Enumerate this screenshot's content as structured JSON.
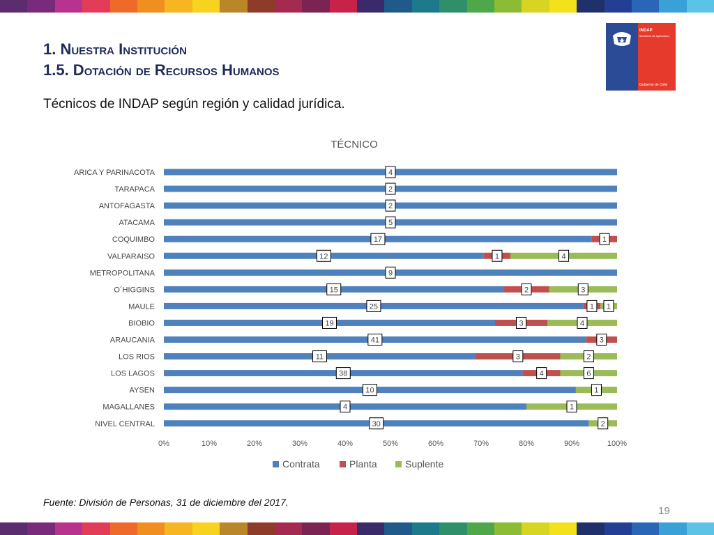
{
  "slide": {
    "heading_line1": "1. Nuestra Institución",
    "heading_line2": "1.5. Dotación de Recursos Humanos",
    "subtitle": "Técnicos de INDAP según región y calidad jurídica.",
    "source": "Fuente: División de Personas, 31 de diciembre del 2017.",
    "page_number": "19"
  },
  "logo": {
    "org": "INDAP",
    "ministry": "Ministerio de Agricultura",
    "government": "Gobierno de Chile"
  },
  "stripe_colors": [
    "#5b2d6e",
    "#7a2a7a",
    "#b8338e",
    "#e23c59",
    "#ee6a2a",
    "#f08f1f",
    "#f6b521",
    "#f7d21f",
    "#b9862a",
    "#8f3b2a",
    "#a52a52",
    "#7b2353",
    "#c7224a",
    "#3a2a6a",
    "#1f5a8a",
    "#1d7a8a",
    "#2f8f6a",
    "#4ea84a",
    "#8cbc34",
    "#d8d522",
    "#f2e11b",
    "#20306b",
    "#233f95",
    "#2a66b8",
    "#3aa0d8",
    "#5cc3e6"
  ],
  "colors": {
    "contrata": "#4f81bd",
    "planta": "#c0504d",
    "suplente": "#9bbb59",
    "heading": "#1f2a5a"
  },
  "chart_data": {
    "type": "bar",
    "orientation": "horizontal",
    "stacked": "percent",
    "title": "TÉCNICO",
    "xlabel": "",
    "ylabel": "",
    "xlim": [
      0,
      100
    ],
    "x_ticks": [
      "0%",
      "10%",
      "20%",
      "30%",
      "40%",
      "50%",
      "60%",
      "70%",
      "80%",
      "90%",
      "100%"
    ],
    "legend_position": "bottom",
    "grid": false,
    "categories": [
      "ARICA Y PARINACOTA",
      "TARAPACA",
      "ANTOFAGASTA",
      "ATACAMA",
      "COQUIMBO",
      "VALPARAISO",
      "METROPOLITANA",
      "O´HIGGINS",
      "MAULE",
      "BIOBIO",
      "ARAUCANIA",
      "LOS RIOS",
      "LOS LAGOS",
      "AYSEN",
      "MAGALLANES",
      "NIVEL CENTRAL"
    ],
    "series": [
      {
        "name": "Contrata",
        "values": [
          4,
          2,
          2,
          5,
          17,
          12,
          9,
          15,
          25,
          19,
          41,
          11,
          38,
          10,
          4,
          30
        ]
      },
      {
        "name": "Planta",
        "values": [
          0,
          0,
          0,
          0,
          1,
          1,
          0,
          2,
          1,
          3,
          3,
          3,
          4,
          0,
          0,
          0
        ]
      },
      {
        "name": "Suplente",
        "values": [
          0,
          0,
          0,
          0,
          0,
          4,
          0,
          3,
          1,
          4,
          0,
          2,
          6,
          1,
          1,
          2
        ]
      }
    ]
  }
}
